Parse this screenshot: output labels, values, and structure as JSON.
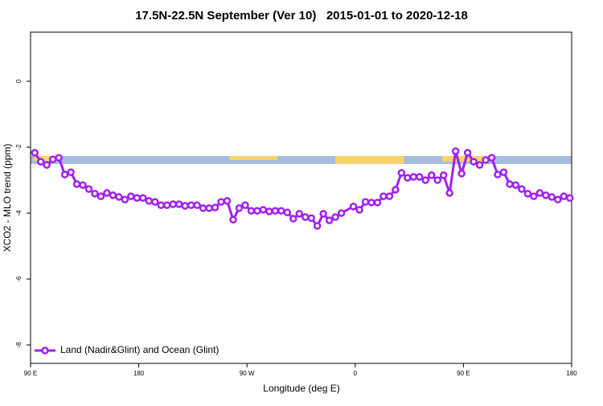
{
  "chart_data": {
    "type": "line",
    "title": "17.5N-22.5N September (Ver 10)   2015-01-01 to 2020-12-18",
    "x_label": "Longitude (deg E)",
    "y_label": "XCO2 - MLO trend (ppm)",
    "xlim": [
      90,
      540
    ],
    "ylim": [
      -8.56,
      1.49
    ],
    "xticks": [
      {
        "value": 90,
        "label": "90 E"
      },
      180,
      {
        "value": 270,
        "label": "90 W"
      },
      {
        "value": 360,
        "label": "0"
      },
      {
        "value": 450,
        "label": "90 E"
      },
      {
        "value": 540,
        "label": "180"
      }
    ],
    "yticks": [
      -8,
      -6,
      -4,
      -2,
      0
    ],
    "legend_position": "bottomleft",
    "x": [
      93.5,
      98.5,
      103.5,
      108.5,
      113.5,
      118.5,
      123.5,
      128.5,
      133.5,
      138.5,
      143.5,
      148.5,
      153.5,
      158.5,
      163.5,
      168.5,
      173.5,
      178.5,
      183.5,
      188.5,
      193.5,
      198.5,
      203.5,
      208.5,
      213.5,
      218.5,
      223.5,
      228.5,
      233.5,
      238.5,
      243.5,
      248.5,
      253.5,
      258.5,
      263.5,
      268.5,
      273.5,
      278.5,
      283.5,
      288.5,
      293.5,
      298.5,
      303.5,
      308.5,
      313.5,
      318.5,
      323.5,
      328.5,
      333.5,
      338.5,
      343.5,
      348.5,
      358.5,
      363.5,
      368.5,
      373.5,
      378.5,
      383.5,
      388.5,
      393.5,
      398.5,
      403.5,
      408.5,
      413.5,
      418.5,
      423.5,
      428.5,
      433.5,
      438.5,
      443.5,
      448.5,
      453.5,
      458.5,
      463.5,
      468.5,
      473.5,
      478.5,
      483.5,
      488.5,
      493.5,
      498.5,
      503.5,
      508.5,
      513.5,
      518.5,
      523.5,
      528.5,
      533.5,
      538.5
    ],
    "series": [
      {
        "name": "Land (Nadir&Glint) and Ocean (Glint)",
        "color": "#a020f0",
        "values": [
          -2.17,
          -2.44,
          -2.54,
          -2.37,
          -2.32,
          -2.83,
          -2.76,
          -3.12,
          -3.15,
          -3.27,
          -3.41,
          -3.49,
          -3.39,
          -3.46,
          -3.51,
          -3.59,
          -3.49,
          -3.54,
          -3.54,
          -3.63,
          -3.66,
          -3.76,
          -3.76,
          -3.73,
          -3.73,
          -3.78,
          -3.76,
          -3.76,
          -3.85,
          -3.85,
          -3.83,
          -3.66,
          -3.63,
          -4.2,
          -3.85,
          -3.76,
          -3.93,
          -3.93,
          -3.9,
          -3.95,
          -3.93,
          -3.93,
          -3.98,
          -4.17,
          -4.02,
          -4.12,
          -4.15,
          -4.39,
          -4.02,
          -4.22,
          -4.12,
          -4.0,
          -3.8,
          -3.9,
          -3.66,
          -3.68,
          -3.68,
          -3.49,
          -3.49,
          -3.29,
          -2.78,
          -2.93,
          -2.9,
          -2.9,
          -3.0,
          -2.85,
          -3.0,
          -2.85,
          -3.39,
          -2.12,
          -2.8,
          -2.17,
          -2.44,
          -2.54,
          -2.39,
          -2.32,
          -2.83,
          -2.76,
          -3.12,
          -3.15,
          -3.27,
          -3.41,
          -3.49,
          -3.39,
          -3.46,
          -3.51,
          -3.59,
          -3.49,
          -3.54
        ]
      }
    ]
  }
}
